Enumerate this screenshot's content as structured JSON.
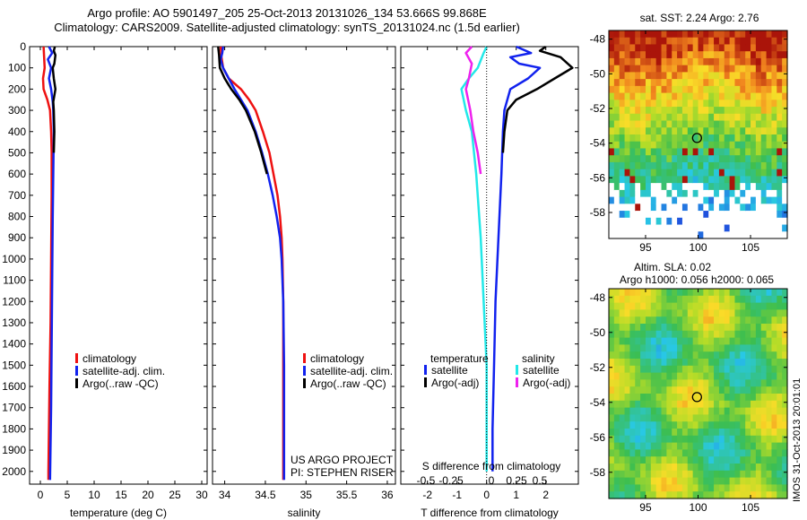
{
  "header": {
    "title_line1": "Argo profile: AO 5901497_205 25-Oct-2013 20131026_134 53.666S 99.868E",
    "title_line2": "Climatology: CARS2009. Satellite-adjusted climatology: synTS_20131024.nc (1.5d earlier)"
  },
  "stamp": "IMOS 31-Oct-2013 20:01:01",
  "colors": {
    "climatology": "#ee1111",
    "satellite": "#1122ee",
    "argo": "#000000",
    "sat_salinity": "#22e8e8",
    "argo_salinity": "#ee22ee"
  },
  "chart_data": [
    {
      "type": "line",
      "name": "temperature-panel",
      "xlabel": "temperature (deg C)",
      "ylabel": "",
      "xlim": [
        -2,
        31
      ],
      "ylim": [
        2060,
        0
      ],
      "xticks": [
        0,
        5,
        10,
        15,
        20,
        25,
        30
      ],
      "yticks": [
        0,
        100,
        200,
        300,
        400,
        500,
        600,
        700,
        800,
        900,
        1000,
        1100,
        1200,
        1300,
        1400,
        1500,
        1600,
        1700,
        1800,
        1900,
        2000
      ],
      "legend": [
        "climatology",
        "satellite-adj. clim.",
        "Argo(..raw -QC)"
      ],
      "series": [
        {
          "name": "climatology",
          "color": "#ee1111",
          "points": [
            [
              0.6,
              0
            ],
            [
              0.7,
              50
            ],
            [
              0.8,
              100
            ],
            [
              0.5,
              150
            ],
            [
              0.6,
              200
            ],
            [
              1.3,
              250
            ],
            [
              1.8,
              300
            ],
            [
              2.0,
              400
            ],
            [
              2.1,
              500
            ],
            [
              2.1,
              700
            ],
            [
              2.0,
              1000
            ],
            [
              1.9,
              1300
            ],
            [
              1.7,
              1600
            ],
            [
              1.5,
              2000
            ],
            [
              1.5,
              2040
            ]
          ]
        },
        {
          "name": "satellite-adj. clim.",
          "color": "#1122ee",
          "points": [
            [
              1.6,
              0
            ],
            [
              2.2,
              30
            ],
            [
              1.4,
              60
            ],
            [
              2.0,
              100
            ],
            [
              1.6,
              150
            ],
            [
              2.0,
              200
            ],
            [
              2.3,
              260
            ],
            [
              2.4,
              300
            ],
            [
              2.5,
              400
            ],
            [
              2.4,
              600
            ],
            [
              2.3,
              800
            ],
            [
              2.2,
              1100
            ],
            [
              2.1,
              1400
            ],
            [
              2.0,
              1700
            ],
            [
              1.8,
              2040
            ]
          ]
        },
        {
          "name": "Argo(..raw -QC)",
          "color": "#000000",
          "points": [
            [
              2.7,
              0
            ],
            [
              2.5,
              20
            ],
            [
              2.8,
              40
            ],
            [
              2.6,
              80
            ],
            [
              2.3,
              100
            ],
            [
              2.5,
              150
            ],
            [
              2.8,
              200
            ],
            [
              2.4,
              260
            ],
            [
              2.5,
              300
            ],
            [
              2.6,
              400
            ],
            [
              2.5,
              500
            ]
          ]
        }
      ]
    },
    {
      "type": "line",
      "name": "salinity-panel",
      "xlabel": "salinity",
      "xlim": [
        33.85,
        36.1
      ],
      "ylim": [
        2060,
        0
      ],
      "xticks": [
        34,
        34.5,
        35,
        35.5,
        36
      ],
      "xticklabels": [
        "34",
        "34.5",
        "35",
        "35.5",
        "36"
      ],
      "legend": [
        "climatology",
        "satellite-adj. clim.",
        "Argo(..raw -QC)"
      ],
      "annotation": [
        "US ARGO PROJECT",
        "PI: STEPHEN RISER"
      ],
      "series": [
        {
          "name": "climatology",
          "color": "#ee1111",
          "points": [
            [
              33.95,
              0
            ],
            [
              33.96,
              50
            ],
            [
              33.98,
              100
            ],
            [
              34.05,
              150
            ],
            [
              34.2,
              200
            ],
            [
              34.3,
              250
            ],
            [
              34.38,
              300
            ],
            [
              34.47,
              400
            ],
            [
              34.55,
              500
            ],
            [
              34.6,
              600
            ],
            [
              34.65,
              700
            ],
            [
              34.68,
              800
            ],
            [
              34.7,
              900
            ],
            [
              34.71,
              1000
            ],
            [
              34.72,
              1200
            ],
            [
              34.72,
              1500
            ],
            [
              34.72,
              2040
            ]
          ]
        },
        {
          "name": "satellite-adj. clim.",
          "color": "#1122ee",
          "points": [
            [
              33.98,
              0
            ],
            [
              33.97,
              30
            ],
            [
              33.95,
              60
            ],
            [
              33.98,
              100
            ],
            [
              34.05,
              150
            ],
            [
              34.12,
              200
            ],
            [
              34.2,
              250
            ],
            [
              34.28,
              300
            ],
            [
              34.38,
              400
            ],
            [
              34.46,
              500
            ],
            [
              34.53,
              600
            ],
            [
              34.59,
              700
            ],
            [
              34.64,
              800
            ],
            [
              34.68,
              900
            ],
            [
              34.7,
              1000
            ],
            [
              34.72,
              1200
            ],
            [
              34.73,
              1500
            ],
            [
              34.73,
              2040
            ]
          ]
        },
        {
          "name": "Argo(..raw -QC)",
          "color": "#000000",
          "points": [
            [
              33.92,
              0
            ],
            [
              33.93,
              40
            ],
            [
              33.94,
              100
            ],
            [
              34.0,
              150
            ],
            [
              34.08,
              200
            ],
            [
              34.18,
              250
            ],
            [
              34.26,
              300
            ],
            [
              34.37,
              400
            ],
            [
              34.45,
              500
            ],
            [
              34.52,
              600
            ]
          ]
        }
      ]
    },
    {
      "type": "line",
      "name": "difference-panel",
      "xlabel": "T difference from climatology",
      "top_label": "S difference from climatology",
      "xlim": [
        -2.9,
        3.1
      ],
      "ylim": [
        2060,
        0
      ],
      "xticks": [
        -2,
        -1,
        0,
        1,
        2
      ],
      "top_ticks": [
        "-0.5",
        "-0.25",
        "0",
        "0.25",
        "0.5"
      ],
      "legend_headers": [
        "temperature",
        "salinity"
      ],
      "legend": [
        "satellite",
        "Argo(-adj)",
        "satellite",
        "Argo(-adj)"
      ],
      "series": [
        {
          "name": "satellite",
          "quantity": "temperature",
          "color": "#1122ee",
          "points": [
            [
              1.0,
              0
            ],
            [
              1.5,
              30
            ],
            [
              0.8,
              50
            ],
            [
              1.1,
              80
            ],
            [
              1.8,
              100
            ],
            [
              1.4,
              150
            ],
            [
              0.8,
              200
            ],
            [
              0.6,
              300
            ],
            [
              0.55,
              400
            ],
            [
              0.5,
              600
            ],
            [
              0.4,
              900
            ],
            [
              0.3,
              1200
            ],
            [
              0.25,
              1500
            ],
            [
              0.2,
              1800
            ],
            [
              0.2,
              2000
            ]
          ]
        },
        {
          "name": "Argo(-adj)",
          "quantity": "temperature",
          "color": "#000000",
          "points": [
            [
              2.0,
              0
            ],
            [
              1.8,
              20
            ],
            [
              2.5,
              50
            ],
            [
              2.9,
              100
            ],
            [
              2.3,
              150
            ],
            [
              1.7,
              200
            ],
            [
              1.0,
              250
            ],
            [
              0.7,
              300
            ],
            [
              0.6,
              400
            ],
            [
              0.55,
              500
            ]
          ]
        },
        {
          "name": "satellite",
          "quantity": "salinity",
          "color": "#22e8e8",
          "points": [
            [
              0.0,
              0
            ],
            [
              -0.1,
              30
            ],
            [
              -0.3,
              100
            ],
            [
              -0.6,
              150
            ],
            [
              -0.85,
              200
            ],
            [
              -0.7,
              300
            ],
            [
              -0.5,
              400
            ],
            [
              -0.35,
              600
            ],
            [
              -0.2,
              900
            ],
            [
              -0.1,
              1200
            ],
            [
              0.0,
              1500
            ],
            [
              0.0,
              2000
            ]
          ]
        },
        {
          "name": "Argo(-adj)",
          "quantity": "salinity",
          "color": "#ee22ee",
          "points": [
            [
              -0.5,
              0
            ],
            [
              -0.7,
              30
            ],
            [
              -0.5,
              80
            ],
            [
              -0.6,
              150
            ],
            [
              -0.7,
              200
            ],
            [
              -0.55,
              300
            ],
            [
              -0.45,
              400
            ],
            [
              -0.3,
              500
            ],
            [
              -0.2,
              600
            ]
          ]
        }
      ]
    },
    {
      "type": "heatmap",
      "name": "sst-map",
      "title": "sat. SST: 2.24  Argo: 2.76",
      "xticks": [
        95,
        100,
        105
      ],
      "yticks": [
        -48,
        -50,
        -52,
        -54,
        -56,
        -58
      ],
      "xlim": [
        91.5,
        108.5
      ],
      "ylim": [
        -59.5,
        -47.5
      ],
      "marker": [
        99.9,
        -53.7
      ]
    },
    {
      "type": "heatmap",
      "name": "sla-map",
      "title": [
        "Altim. SLA: 0.02",
        "Argo h1000: 0.056 h2000: 0.065"
      ],
      "xticks": [
        95,
        100,
        105
      ],
      "yticks": [
        -48,
        -50,
        -52,
        -54,
        -56,
        -58
      ],
      "xlim": [
        91.5,
        108.5
      ],
      "ylim": [
        -59.5,
        -47.5
      ],
      "marker": [
        99.9,
        -53.7
      ]
    }
  ]
}
